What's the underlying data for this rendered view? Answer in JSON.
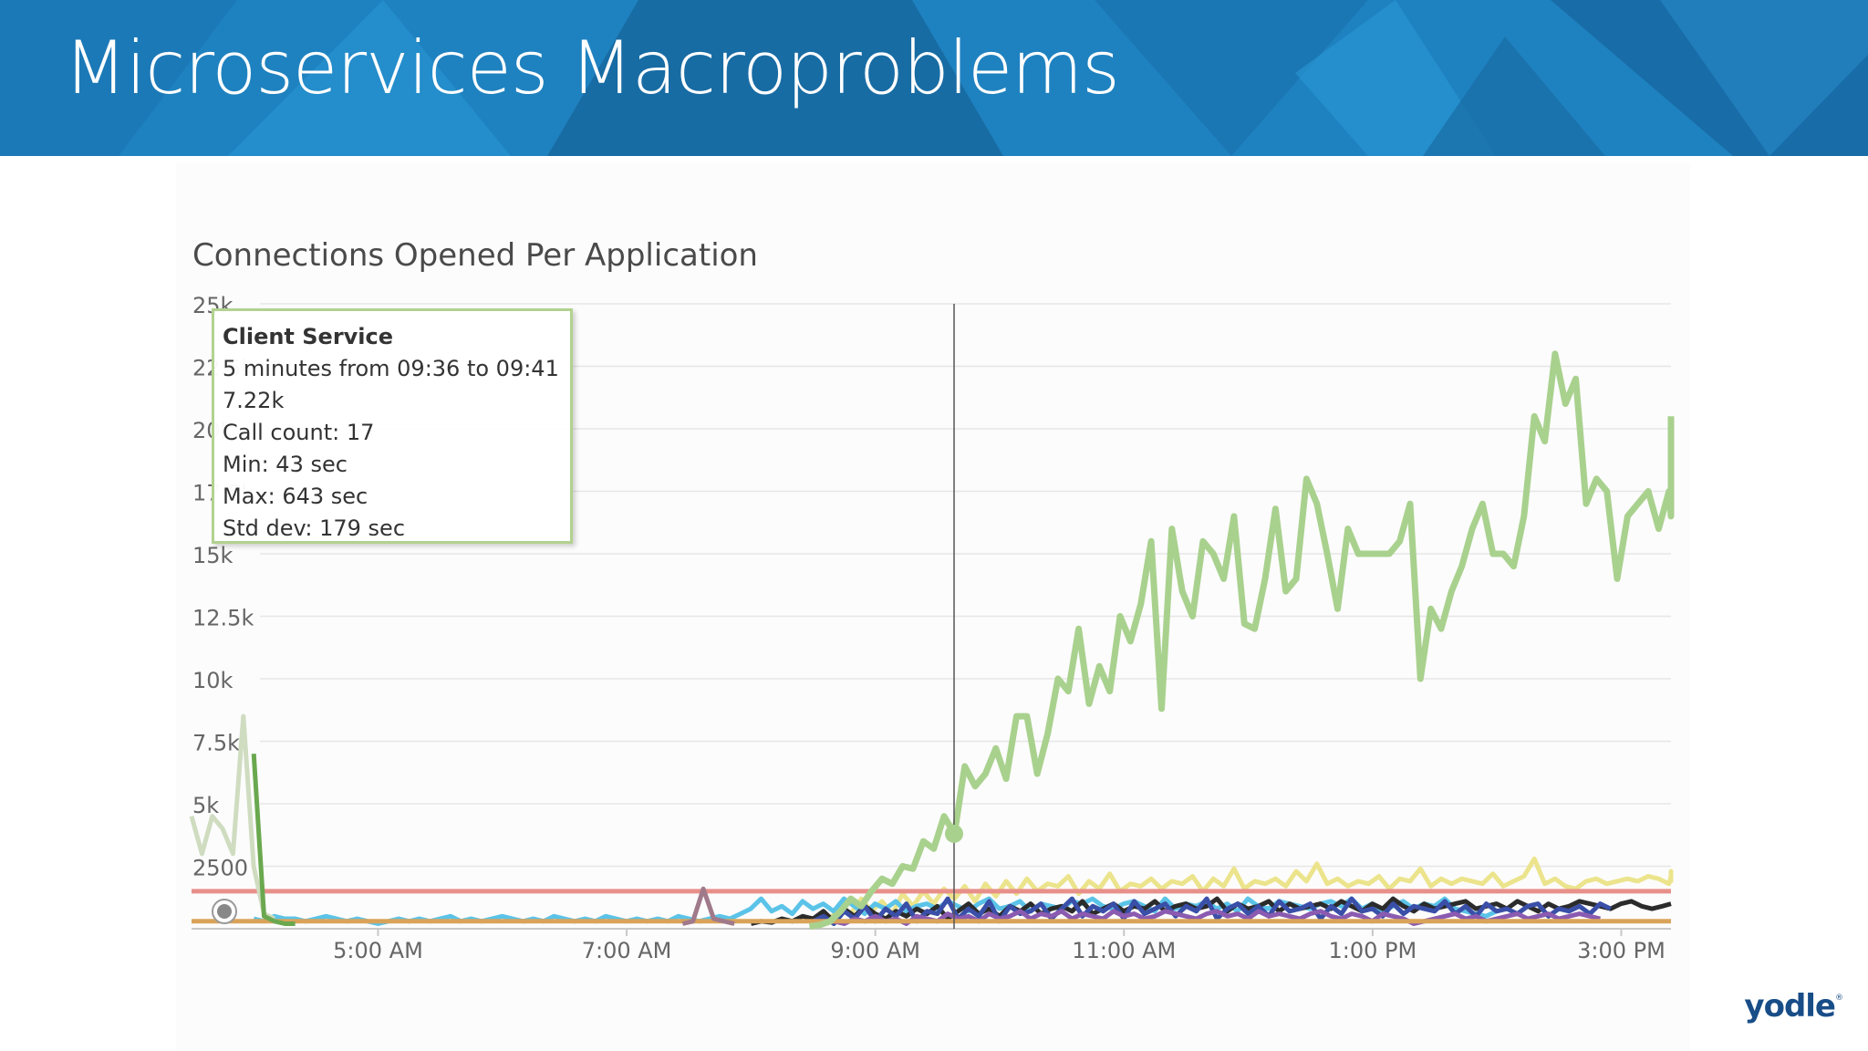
{
  "slide": {
    "title": "Microservices Macroproblems",
    "logo": "yodle",
    "logo_mark": "®",
    "banner_colors": [
      "#1b6fa8",
      "#2288c8",
      "#1a76b8"
    ]
  },
  "chart_data": {
    "type": "line",
    "title": "Connections Opened Per Application",
    "xlabel": "",
    "ylabel": "",
    "x_ticks": [
      "5:00 AM",
      "7:00 AM",
      "9:00 AM",
      "11:00 AM",
      "1:00 PM",
      "3:00 PM"
    ],
    "x_range_hours": [
      3.5,
      15.4
    ],
    "y_ticks": [
      "25k",
      "22.5k",
      "20k",
      "17.5k",
      "15k",
      "12.5k",
      "10k",
      "7.5k",
      "5k",
      "2500"
    ],
    "ylim": [
      0,
      25000
    ],
    "grid": true,
    "crosshair_time": "09:38",
    "series": [
      {
        "color": "#a9d18e",
        "highlighted": true,
        "hour_start": 8.47,
        "hour_step": 0.0833,
        "values": [
          100,
          150,
          300,
          700,
          1200,
          900,
          1500,
          2000,
          1800,
          2500,
          2400,
          3500,
          3200,
          4500,
          3800,
          6500,
          5700,
          6200,
          7220,
          6000,
          8500,
          8500,
          6200,
          7800,
          10000,
          9500,
          12000,
          9000,
          10500,
          9500,
          12500,
          11500,
          13000,
          15500,
          8800,
          16000,
          13500,
          12500,
          15500,
          15000,
          14000,
          16500,
          12200,
          12000,
          14000,
          16800,
          13500,
          14000,
          18000,
          17000,
          15000,
          12800,
          16000,
          15000,
          15000,
          15000,
          15000,
          15500,
          17000,
          10000,
          12800,
          12000,
          13500,
          14500,
          16000,
          17000,
          15000,
          15000,
          14500,
          16500,
          20500,
          19500,
          23000,
          21000,
          22000,
          17000,
          18000,
          17500,
          14000,
          16500,
          17000,
          17500,
          16000,
          17500,
          16500,
          19000,
          18000,
          20500
        ]
      },
      {
        "color": "#ece48c",
        "hour_start": 8.47,
        "hour_step": 0.0833,
        "values": [
          300,
          500,
          400,
          900,
          600,
          1200,
          700,
          1100,
          600,
          1400,
          900,
          1500,
          1000,
          1600,
          1200,
          1700,
          1100,
          1800,
          1300,
          1900,
          1400,
          2000,
          1500,
          1800,
          1700,
          2100,
          1400,
          1900,
          1600,
          2200,
          1500,
          1800,
          1700,
          2000,
          1600,
          1900,
          1800,
          2100,
          1500,
          2000,
          1700,
          2400,
          1600,
          1900,
          1800,
          2000,
          1700,
          2300,
          1900,
          2600,
          1800,
          2000,
          1700,
          1900,
          1800,
          2100,
          1600,
          2000,
          1900,
          2400,
          1700,
          2000,
          1800,
          2000,
          1900,
          1800,
          2200,
          1700,
          1900,
          2100,
          2800,
          1800,
          2000,
          1700,
          1600,
          1900,
          2000,
          1800,
          1900,
          2000,
          1900,
          2100,
          2000,
          1800,
          2100,
          2300,
          1900,
          2100
        ]
      },
      {
        "color": "#e8908a",
        "hour_start": 3.5,
        "hour_step": 0.0833,
        "values_note": "flat",
        "values": [
          1500,
          1500
        ]
      },
      {
        "color": "#5bc3e8",
        "hour_start": 4.0,
        "hour_step": 0.0833,
        "values": [
          400,
          300,
          500,
          400,
          400,
          300,
          400,
          500,
          400,
          300,
          400,
          300,
          200,
          300,
          400,
          300,
          400,
          300,
          400,
          500,
          300,
          400,
          300,
          400,
          500,
          400,
          300,
          400,
          300,
          500,
          400,
          300,
          400,
          300,
          500,
          400,
          300,
          400,
          300,
          400,
          300,
          500,
          400,
          300,
          400,
          500,
          400,
          600,
          800,
          1200,
          700,
          900,
          600,
          1100,
          800,
          1000,
          700,
          1200,
          900,
          600,
          1000,
          800,
          1100,
          700,
          900,
          1000,
          800,
          1100,
          900,
          700,
          1000,
          1200,
          800,
          900,
          1100,
          700,
          1000,
          900,
          800,
          1100,
          1000,
          1200,
          900,
          800,
          1000,
          1100,
          900,
          700,
          1200,
          800,
          1000,
          900,
          1100,
          800,
          1000,
          700,
          1200,
          900,
          800,
          1100,
          1000,
          900,
          800,
          1000,
          1100,
          900,
          1200,
          800,
          1000,
          700,
          900,
          1100,
          800,
          1000,
          900,
          1200,
          800,
          700,
          600,
          500,
          700
        ]
      },
      {
        "color": "#2b2b2b",
        "hour_start": 8.0,
        "hour_step": 0.0833,
        "values": [
          200,
          300,
          250,
          400,
          300,
          500,
          400,
          700,
          300,
          800,
          500,
          900,
          600,
          400,
          700,
          500,
          800,
          600,
          900,
          400,
          700,
          1000,
          600,
          800,
          500,
          900,
          700,
          1000,
          600,
          800,
          900,
          700,
          1100,
          600,
          800,
          1000,
          700,
          900,
          800,
          1100,
          700,
          900,
          1000,
          800,
          900,
          1200,
          700,
          1000,
          800,
          900,
          1100,
          700,
          1000,
          800,
          900,
          1000,
          800,
          1100,
          900,
          700,
          1000,
          800,
          1200,
          900,
          700,
          1000,
          800,
          900,
          1000,
          1100,
          800,
          900,
          1000,
          800,
          1100,
          900,
          700,
          1000,
          800,
          900,
          1100,
          1000,
          900,
          800,
          1000,
          1100,
          900,
          800,
          900,
          1000
        ]
      },
      {
        "color": "#3a4fa8",
        "hour_start": 8.5,
        "hour_step": 0.0833,
        "values": [
          300,
          500,
          200,
          700,
          400,
          900,
          300,
          800,
          500,
          1000,
          300,
          700,
          600,
          1200,
          400,
          800,
          500,
          1100,
          300,
          900,
          600,
          700,
          1000,
          400,
          800,
          1200,
          500,
          900,
          700,
          1000,
          400,
          1100,
          600,
          800,
          1000,
          500,
          900,
          700,
          1200,
          400,
          800,
          1000,
          600,
          900,
          500,
          1100,
          700,
          800,
          1000,
          400,
          900,
          600,
          1200,
          700,
          800,
          500,
          1000,
          600,
          900,
          800,
          700,
          1100,
          600,
          900,
          500,
          1000,
          700,
          800,
          600,
          900,
          1000,
          500,
          800,
          700,
          900,
          600,
          1000,
          800
        ]
      },
      {
        "color": "#8a5bb0",
        "hour_start": 8.5,
        "hour_step": 0.0833,
        "values": [
          100,
          200,
          300,
          200,
          400,
          300,
          500,
          300,
          400,
          200,
          500,
          400,
          300,
          600,
          400,
          500,
          300,
          600,
          400,
          500,
          700,
          400,
          600,
          500,
          700,
          400,
          600,
          500,
          400,
          700,
          500,
          600,
          400,
          500,
          700,
          600,
          500,
          400,
          600,
          700,
          500,
          600,
          400,
          700,
          500,
          600,
          500,
          400,
          600,
          700,
          500,
          400,
          600,
          500,
          300,
          600,
          500,
          400,
          200,
          300,
          400,
          500,
          600,
          400,
          500,
          300,
          400,
          500,
          600,
          400,
          500,
          600,
          400,
          500,
          600,
          500,
          400
        ]
      },
      {
        "color": "#d9a35a",
        "hour_start": 3.5,
        "hour_step": 0.0833,
        "values": [
          300,
          300
        ]
      },
      {
        "color": "#cfdcc0",
        "hour_start": 3.5,
        "hour_step": 0.0833,
        "values": [
          4500,
          3000,
          4500,
          4000,
          3000,
          8500,
          2500,
          600,
          400
        ]
      },
      {
        "color": "#6aa84f",
        "hour_start": 4.0,
        "hour_step": 0.0833,
        "values": [
          7000,
          500,
          300,
          200,
          200
        ]
      },
      {
        "color": "#a07a8a",
        "hour_start": 7.45,
        "hour_step": 0.0833,
        "values": [
          200,
          300,
          1600,
          400,
          300,
          200
        ]
      }
    ]
  },
  "tooltip": {
    "title": "Client Service",
    "range": "5 minutes from 09:36 to 09:41",
    "value": "7.22k",
    "call_count": "Call count: 17",
    "min": "Min: 43 sec",
    "max": "Max: 643 sec",
    "std_dev": "Std dev: 179 sec"
  }
}
